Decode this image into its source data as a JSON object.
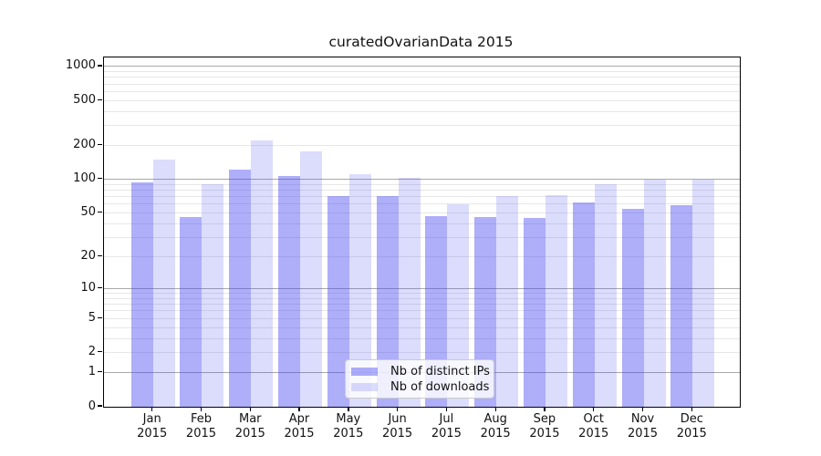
{
  "title": "curatedOvarianData 2015",
  "chart_data": {
    "type": "bar",
    "title": "curatedOvarianData 2015",
    "x_year": "2015",
    "categories": [
      "Jan",
      "Feb",
      "Mar",
      "Apr",
      "May",
      "Jun",
      "Jul",
      "Aug",
      "Sep",
      "Oct",
      "Nov",
      "Dec"
    ],
    "series": [
      {
        "name": "Nb of distinct IPs",
        "color": "rgba(62,62,240,0.42)",
        "color_hex": "#a4a4f7",
        "values": [
          94,
          46,
          122,
          108,
          71,
          71,
          47,
          46,
          45,
          62,
          55,
          59
        ]
      },
      {
        "name": "Nb of downloads",
        "color": "rgba(62,62,240,0.18)",
        "color_hex": "#d8d8fa",
        "values": [
          150,
          90,
          220,
          178,
          111,
          104,
          60,
          71,
          72,
          90,
          100,
          100
        ]
      }
    ],
    "y_scale": "log1p",
    "y_ticks": [
      1000,
      500,
      200,
      100,
      50,
      20,
      10,
      5,
      2,
      1,
      0
    ],
    "grid_major_values": [
      1,
      10,
      100,
      1000
    ],
    "grid_minor_values": [
      2,
      3,
      4,
      5,
      6,
      7,
      8,
      9,
      20,
      30,
      40,
      50,
      60,
      70,
      80,
      90,
      200,
      300,
      400,
      500,
      600,
      700,
      800,
      900
    ],
    "ylim_top_equivalent": 1200,
    "legend_position": "lower center",
    "grid": true,
    "colors": {
      "grid_major": "#a9a9a9",
      "grid_minor": "#e7e7e7",
      "spine": "#000000",
      "background": "#ffffff"
    }
  }
}
